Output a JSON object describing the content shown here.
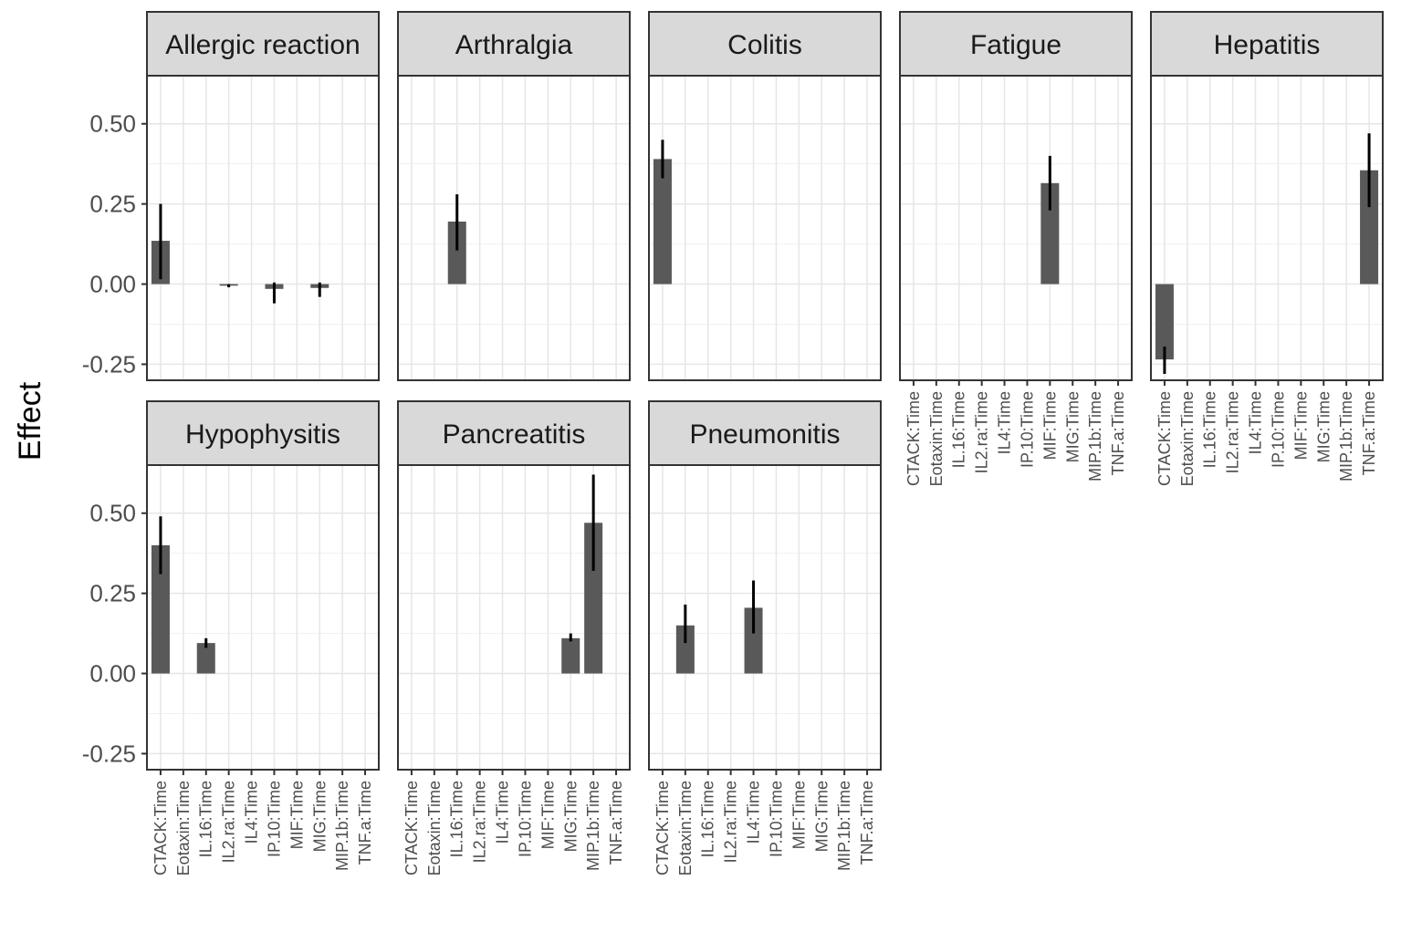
{
  "chart_data": {
    "type": "bar",
    "ylabel": "Effect",
    "xlabel": "",
    "ylim": [
      -0.3,
      0.65
    ],
    "yticks": [
      -0.25,
      0.0,
      0.25,
      0.5
    ],
    "ytick_labels": [
      "-0.25",
      "0.00",
      "0.25",
      "0.50"
    ],
    "categories": [
      "CTACK:Time",
      "Eotaxin:Time",
      "IL.16:Time",
      "IL2.ra:Time",
      "IL4:Time",
      "IP.10:Time",
      "MIF:Time",
      "MIG:Time",
      "MIP.1b:Time",
      "TNF.a:Time"
    ],
    "grid": true,
    "bar_color": "#595959",
    "panels": [
      {
        "title": "Allergic reaction",
        "bars": [
          {
            "category": "CTACK:Time",
            "value": 0.135,
            "lower": 0.015,
            "upper": 0.25
          },
          {
            "category": "IL2.ra:Time",
            "value": -0.005,
            "lower": -0.01,
            "upper": 0.0
          },
          {
            "category": "IP.10:Time",
            "value": -0.015,
            "lower": -0.06,
            "upper": 0.005
          },
          {
            "category": "MIG:Time",
            "value": -0.012,
            "lower": -0.04,
            "upper": 0.005
          }
        ]
      },
      {
        "title": "Arthralgia",
        "bars": [
          {
            "category": "IL.16:Time",
            "value": 0.195,
            "lower": 0.105,
            "upper": 0.28
          }
        ]
      },
      {
        "title": "Colitis",
        "bars": [
          {
            "category": "CTACK:Time",
            "value": 0.39,
            "lower": 0.33,
            "upper": 0.45
          }
        ]
      },
      {
        "title": "Fatigue",
        "bars": [
          {
            "category": "MIF:Time",
            "value": 0.315,
            "lower": 0.23,
            "upper": 0.4
          }
        ]
      },
      {
        "title": "Hepatitis",
        "bars": [
          {
            "category": "CTACK:Time",
            "value": -0.235,
            "lower": -0.28,
            "upper": -0.195
          },
          {
            "category": "TNF.a:Time",
            "value": 0.355,
            "lower": 0.24,
            "upper": 0.47
          }
        ]
      },
      {
        "title": "Hypophysitis",
        "bars": [
          {
            "category": "CTACK:Time",
            "value": 0.4,
            "lower": 0.31,
            "upper": 0.49
          },
          {
            "category": "IL.16:Time",
            "value": 0.095,
            "lower": 0.08,
            "upper": 0.11
          }
        ]
      },
      {
        "title": "Pancreatitis",
        "bars": [
          {
            "category": "MIG:Time",
            "value": 0.11,
            "lower": 0.1,
            "upper": 0.125
          },
          {
            "category": "MIP.1b:Time",
            "value": 0.47,
            "lower": 0.32,
            "upper": 0.62
          }
        ]
      },
      {
        "title": "Pneumonitis",
        "bars": [
          {
            "category": "Eotaxin:Time",
            "value": 0.15,
            "lower": 0.095,
            "upper": 0.215
          },
          {
            "category": "IL4:Time",
            "value": 0.205,
            "lower": 0.125,
            "upper": 0.29
          }
        ]
      }
    ]
  }
}
